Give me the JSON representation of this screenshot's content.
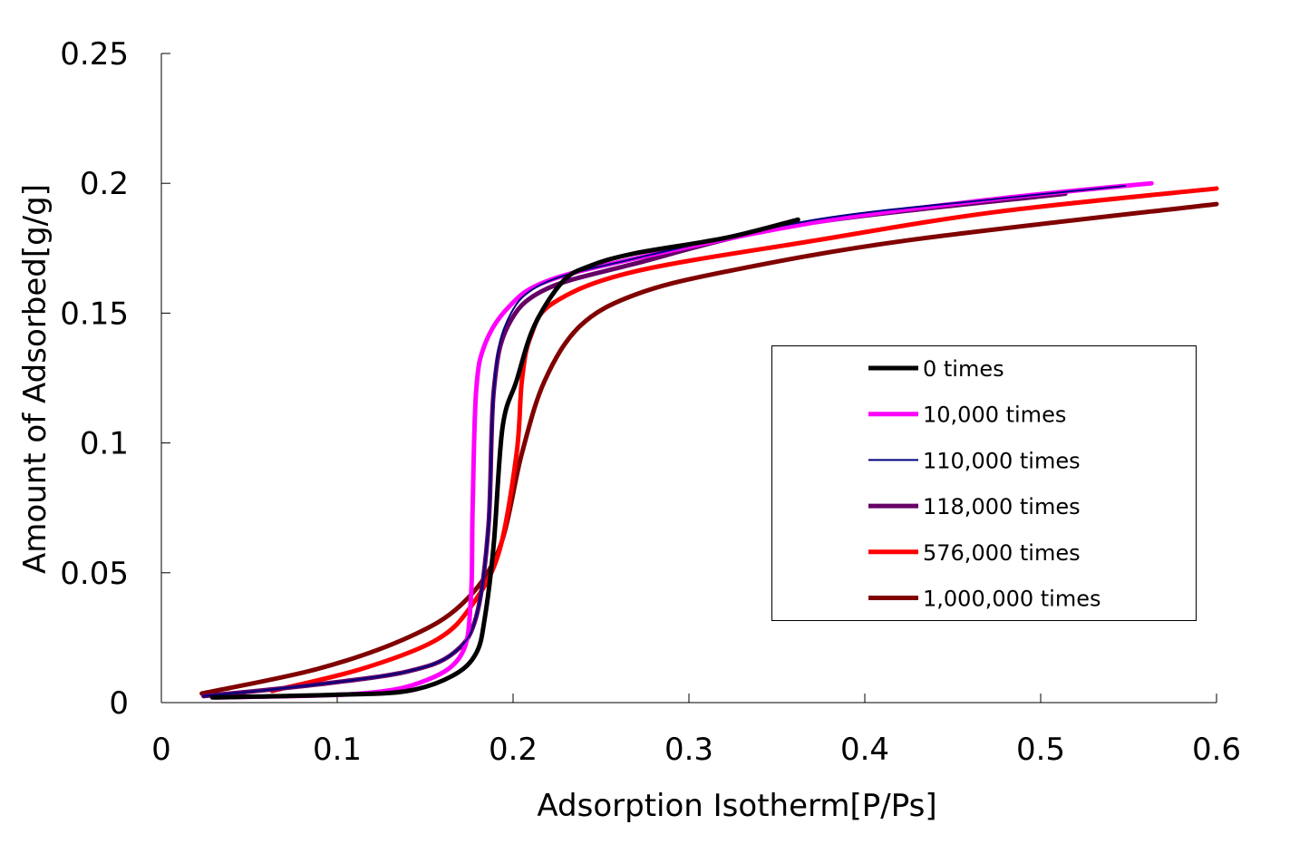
{
  "chart_data": {
    "type": "line",
    "title": "",
    "xlabel": "Adsorption Isotherm[P/Ps]",
    "ylabel": "Amount of Adsorbed[g/g]",
    "xlim": [
      0,
      0.6
    ],
    "ylim": [
      0,
      0.25
    ],
    "xticks": [
      "0",
      "0.1",
      "0.2",
      "0.3",
      "0.4",
      "0.5",
      "0.6"
    ],
    "yticks": [
      "0",
      "0.05",
      "0.1",
      "0.15",
      "0.2",
      "0.25"
    ],
    "grid": false,
    "legend_position": "right",
    "series": [
      {
        "name": "0 times",
        "color": "#000000",
        "width": "thick",
        "points": [
          [
            0.029,
            0.002
          ],
          [
            0.099,
            0.003
          ],
          [
            0.14,
            0.0045
          ],
          [
            0.166,
            0.0105
          ],
          [
            0.179,
            0.019
          ],
          [
            0.184,
            0.033
          ],
          [
            0.189,
            0.061
          ],
          [
            0.194,
            0.106
          ],
          [
            0.202,
            0.124
          ],
          [
            0.212,
            0.145
          ],
          [
            0.228,
            0.162
          ],
          [
            0.243,
            0.168
          ],
          [
            0.269,
            0.173
          ],
          [
            0.321,
            0.179
          ],
          [
            0.362,
            0.186
          ]
        ]
      },
      {
        "name": "10,000 times",
        "color": "#ff00ff",
        "width": "thick",
        "points": [
          [
            0.031,
            0.002
          ],
          [
            0.114,
            0.0035
          ],
          [
            0.151,
            0.0087
          ],
          [
            0.171,
            0.019
          ],
          [
            0.176,
            0.04
          ],
          [
            0.177,
            0.075
          ],
          [
            0.179,
            0.12
          ],
          [
            0.184,
            0.138
          ],
          [
            0.197,
            0.152
          ],
          [
            0.218,
            0.162
          ],
          [
            0.269,
            0.171
          ],
          [
            0.372,
            0.185
          ],
          [
            0.475,
            0.194
          ],
          [
            0.563,
            0.2
          ]
        ]
      },
      {
        "name": "110,000 times",
        "color": "#000080",
        "width": "thin",
        "points": [
          [
            0.024,
            0.0025
          ],
          [
            0.089,
            0.007
          ],
          [
            0.14,
            0.012
          ],
          [
            0.166,
            0.019
          ],
          [
            0.179,
            0.033
          ],
          [
            0.186,
            0.068
          ],
          [
            0.189,
            0.12
          ],
          [
            0.196,
            0.146
          ],
          [
            0.216,
            0.161
          ],
          [
            0.269,
            0.171
          ],
          [
            0.372,
            0.186
          ],
          [
            0.475,
            0.194
          ],
          [
            0.548,
            0.199
          ]
        ]
      },
      {
        "name": "118,000 times",
        "color": "#660066",
        "width": "thick",
        "points": [
          [
            0.024,
            0.0025
          ],
          [
            0.089,
            0.007
          ],
          [
            0.14,
            0.012
          ],
          [
            0.166,
            0.019
          ],
          [
            0.179,
            0.033
          ],
          [
            0.186,
            0.068
          ],
          [
            0.189,
            0.12
          ],
          [
            0.197,
            0.145
          ],
          [
            0.218,
            0.159
          ],
          [
            0.269,
            0.169
          ],
          [
            0.362,
            0.184
          ],
          [
            0.514,
            0.196
          ]
        ]
      },
      {
        "name": "576,000 times",
        "color": "#ff0000",
        "width": "thick",
        "points": [
          [
            0.063,
            0.0045
          ],
          [
            0.114,
            0.013
          ],
          [
            0.156,
            0.024
          ],
          [
            0.176,
            0.037
          ],
          [
            0.192,
            0.058
          ],
          [
            0.202,
            0.096
          ],
          [
            0.205,
            0.124
          ],
          [
            0.21,
            0.141
          ],
          [
            0.223,
            0.154
          ],
          [
            0.269,
            0.166
          ],
          [
            0.372,
            0.178
          ],
          [
            0.475,
            0.189
          ],
          [
            0.6,
            0.198
          ]
        ]
      },
      {
        "name": "1,000,000 times",
        "color": "#800000",
        "width": "thick",
        "points": [
          [
            0.023,
            0.0035
          ],
          [
            0.089,
            0.013
          ],
          [
            0.14,
            0.025
          ],
          [
            0.171,
            0.038
          ],
          [
            0.192,
            0.059
          ],
          [
            0.205,
            0.096
          ],
          [
            0.218,
            0.124
          ],
          [
            0.238,
            0.145
          ],
          [
            0.269,
            0.157
          ],
          [
            0.321,
            0.166
          ],
          [
            0.424,
            0.178
          ],
          [
            0.6,
            0.192
          ]
        ]
      }
    ]
  }
}
